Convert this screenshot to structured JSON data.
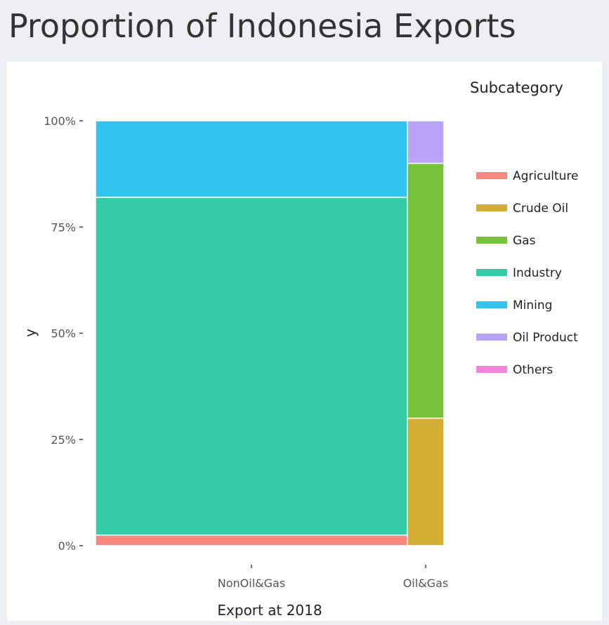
{
  "page": {
    "title": "Proportion of Indonesia Exports"
  },
  "chart_data": {
    "type": "bar",
    "subtype": "marimekko",
    "xlabel": "Export at 2018",
    "ylabel": "y",
    "ylim": [
      0,
      100
    ],
    "y_ticks": [
      "0%",
      "25%",
      "50%",
      "75%",
      "100%"
    ],
    "y_tick_values": [
      0,
      25,
      50,
      75,
      100
    ],
    "categories": [
      "NonOil&Gas",
      "Oil&Gas"
    ],
    "category_widths": [
      89.5,
      10.5
    ],
    "legend_title": "Subcategory",
    "legend_position": "right",
    "series": [
      {
        "name": "Agriculture",
        "color": "#f8877f",
        "values": [
          2.5,
          0
        ]
      },
      {
        "name": "Crude Oil",
        "color": "#d4ad34",
        "values": [
          0,
          30
        ]
      },
      {
        "name": "Gas",
        "color": "#76c23a",
        "values": [
          0,
          60
        ]
      },
      {
        "name": "Industry",
        "color": "#33cca6",
        "values": [
          79.5,
          0
        ]
      },
      {
        "name": "Mining",
        "color": "#33c3f0",
        "values": [
          18,
          0
        ]
      },
      {
        "name": "Oil Product",
        "color": "#b8a3f9",
        "values": [
          0,
          10
        ]
      },
      {
        "name": "Others",
        "color": "#f582db",
        "values": [
          0,
          0
        ]
      }
    ]
  }
}
